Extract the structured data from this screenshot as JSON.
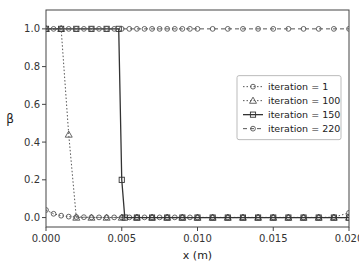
{
  "chart_data": {
    "type": "line",
    "xlabel": "x (m)",
    "ylabel": "β",
    "xlim": [
      0.0,
      0.02
    ],
    "ylim": [
      -0.05,
      1.1
    ],
    "xticks": [
      {
        "value": 0.0,
        "label": "0.000"
      },
      0.005,
      {
        "value": 0.01,
        "label": "0.010"
      },
      0.015,
      {
        "value": 0.02,
        "label": "0.020"
      }
    ],
    "yticks": [
      {
        "value": 0.0,
        "label": "0.0"
      },
      0.2,
      0.4,
      0.6,
      0.8,
      {
        "value": 1.0,
        "label": "1.0"
      }
    ],
    "grid": false,
    "legend": "right",
    "series": [
      {
        "name": "iteration = 1",
        "color": "#555555",
        "line_style": "dotted",
        "marker": "circle",
        "x": [
          0.0,
          0.0005,
          0.001,
          0.0015,
          0.002,
          0.0025,
          0.003,
          0.0035,
          0.004,
          0.0045,
          0.005,
          0.0055,
          0.006,
          0.0065,
          0.007,
          0.0075,
          0.008,
          0.0085,
          0.009,
          0.0095,
          0.01,
          0.011,
          0.012,
          0.013,
          0.014,
          0.015,
          0.016,
          0.017,
          0.018,
          0.019,
          0.02
        ],
        "values": [
          0.04,
          0.02,
          0.01,
          0.005,
          0.003,
          0.002,
          0.001,
          0.001,
          0.001,
          0.001,
          0.001,
          0.001,
          0.001,
          0.001,
          0.001,
          0.001,
          0.001,
          0.001,
          0.001,
          0.001,
          0.001,
          0.001,
          0.001,
          0.001,
          0.001,
          0.001,
          0.001,
          0.001,
          0.001,
          0.002,
          0.025
        ]
      },
      {
        "name": "iteration = 100",
        "color": "#555555",
        "line_style": "dotted",
        "marker": "triangle",
        "x": [
          0.0,
          0.001,
          0.0015,
          0.002,
          0.003,
          0.004,
          0.005,
          0.006,
          0.007,
          0.008,
          0.009,
          0.01,
          0.011,
          0.012,
          0.013,
          0.014,
          0.015,
          0.016,
          0.017,
          0.018,
          0.019,
          0.02
        ],
        "values": [
          1.0,
          1.0,
          0.44,
          0.0,
          0.0,
          0.0,
          0.0,
          0.0,
          0.0,
          0.0,
          0.0,
          0.0,
          0.0,
          0.0,
          0.0,
          0.0,
          0.0,
          0.0,
          0.0,
          0.0,
          0.0,
          0.0
        ]
      },
      {
        "name": "iteration = 150",
        "color": "#333333",
        "line_style": "solid",
        "marker": "square",
        "x": [
          0.0,
          0.001,
          0.002,
          0.003,
          0.004,
          0.0048,
          0.005,
          0.0052,
          0.006,
          0.007,
          0.008,
          0.009,
          0.01,
          0.011,
          0.012,
          0.013,
          0.014,
          0.015,
          0.016,
          0.017,
          0.018,
          0.019,
          0.02
        ],
        "values": [
          1.0,
          1.0,
          1.0,
          1.0,
          1.0,
          1.0,
          0.2,
          0.0,
          0.0,
          0.0,
          0.0,
          0.0,
          0.0,
          0.0,
          0.0,
          0.0,
          0.0,
          0.0,
          0.0,
          0.0,
          0.0,
          0.0,
          0.0
        ]
      },
      {
        "name": "iteration = 220",
        "color": "#555555",
        "line_style": "dashed",
        "marker": "circle",
        "x": [
          0.0,
          0.0005,
          0.001,
          0.0015,
          0.002,
          0.0025,
          0.003,
          0.0035,
          0.004,
          0.0045,
          0.005,
          0.0055,
          0.006,
          0.0065,
          0.007,
          0.0075,
          0.008,
          0.0085,
          0.009,
          0.0095,
          0.01,
          0.011,
          0.012,
          0.013,
          0.014,
          0.015,
          0.016,
          0.017,
          0.018,
          0.019,
          0.02
        ],
        "values": [
          1.0,
          1.0,
          1.0,
          1.0,
          1.0,
          1.0,
          1.0,
          1.0,
          1.0,
          1.0,
          1.0,
          1.0,
          1.0,
          1.0,
          1.0,
          1.0,
          1.0,
          1.0,
          1.0,
          1.0,
          1.0,
          1.0,
          1.0,
          1.0,
          1.0,
          1.0,
          1.0,
          1.0,
          1.0,
          1.0,
          1.0
        ]
      }
    ]
  }
}
